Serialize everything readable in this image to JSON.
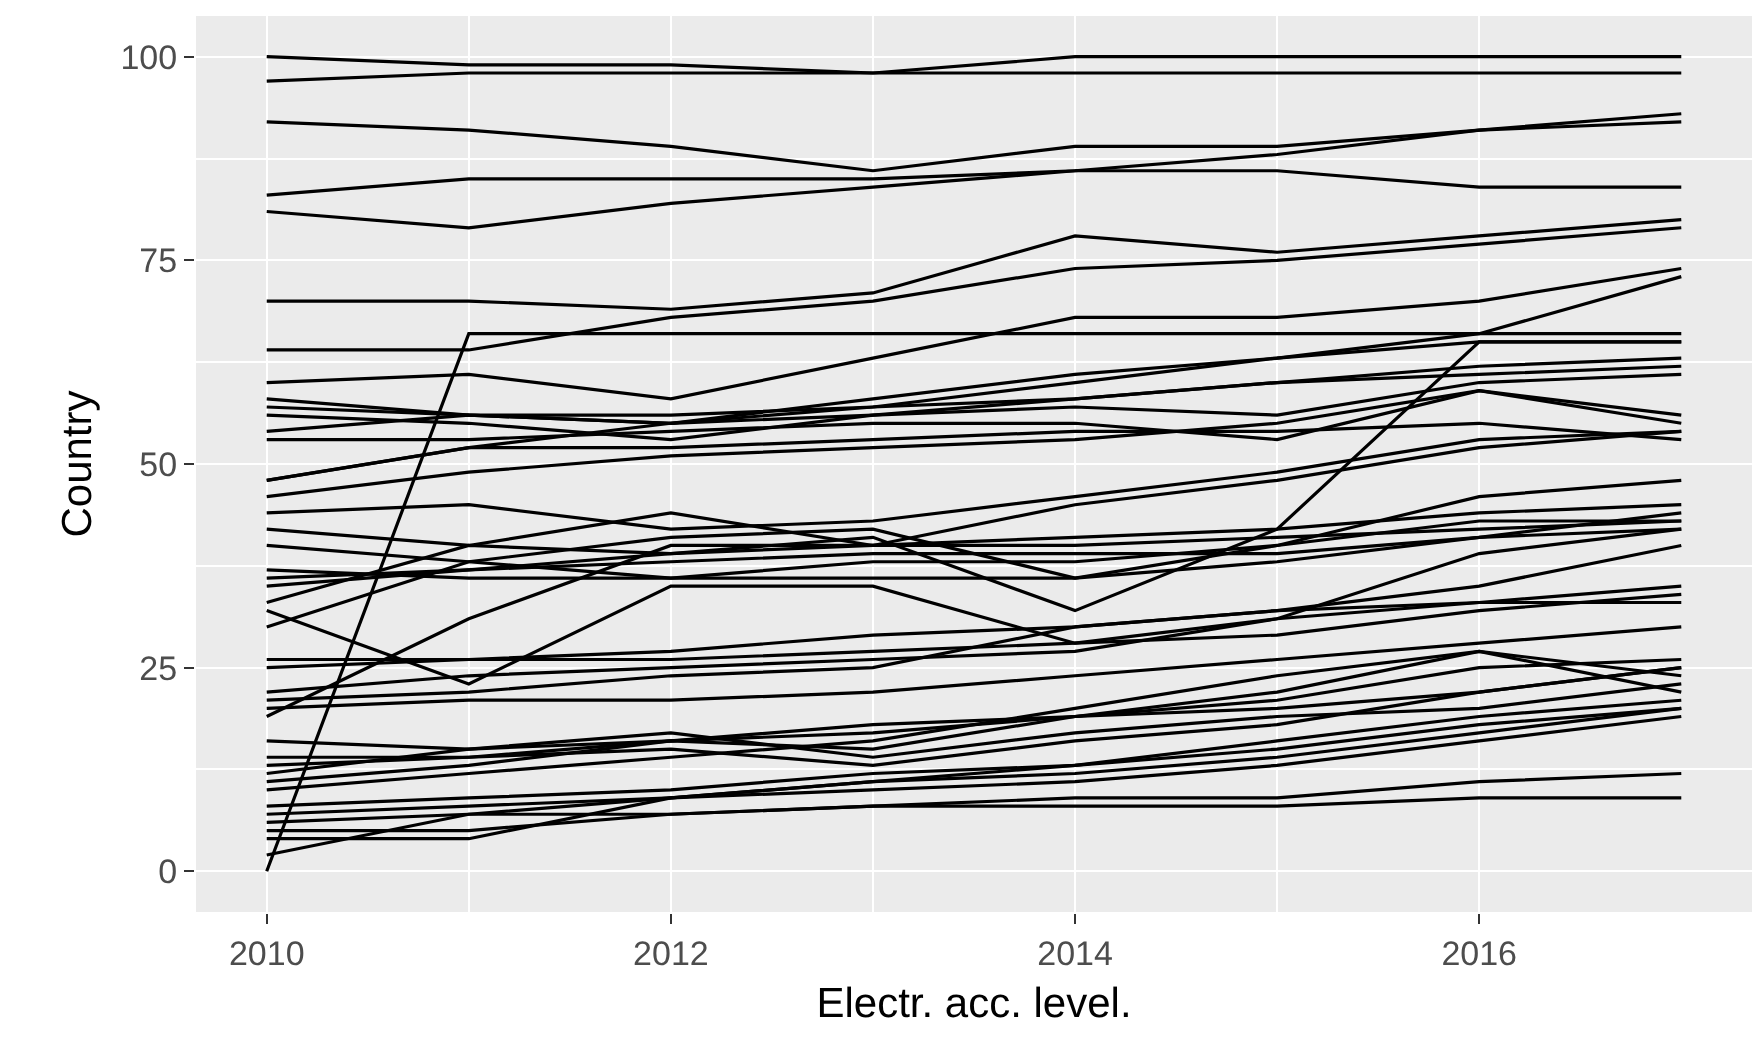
{
  "chart_data": {
    "type": "line",
    "xlabel": "Electr. acc. level.",
    "ylabel": "Country",
    "x": [
      2010,
      2011,
      2012,
      2013,
      2014,
      2015,
      2016,
      2017
    ],
    "xlim": [
      2009.65,
      2017.35
    ],
    "xticks": [
      2010,
      2012,
      2014,
      2016
    ],
    "ylim": [
      -5,
      105
    ],
    "yticks": [
      0,
      25,
      50,
      75,
      100
    ],
    "grid": true,
    "legend": false,
    "marker": "none",
    "line_style": "solid",
    "series": [
      {
        "color": "#000000",
        "values": [
          100,
          99,
          99,
          98,
          100,
          100,
          100,
          100
        ]
      },
      {
        "color": "#000000",
        "values": [
          97,
          98,
          98,
          98,
          98,
          98,
          98,
          98
        ]
      },
      {
        "color": "#000000",
        "values": [
          92,
          91,
          89,
          86,
          89,
          89,
          91,
          93
        ]
      },
      {
        "color": "#000000",
        "values": [
          83,
          85,
          85,
          85,
          86,
          88,
          91,
          92
        ]
      },
      {
        "color": "#000000",
        "values": [
          81,
          79,
          82,
          84,
          86,
          86,
          84,
          84
        ]
      },
      {
        "color": "#000000",
        "values": [
          70,
          70,
          69,
          71,
          78,
          76,
          78,
          80
        ]
      },
      {
        "color": "#000000",
        "values": [
          64,
          64,
          68,
          70,
          74,
          75,
          77,
          79
        ]
      },
      {
        "color": "#000000",
        "values": [
          0,
          66,
          66,
          66,
          66,
          66,
          66,
          66
        ]
      },
      {
        "color": "#000000",
        "values": [
          60,
          61,
          58,
          63,
          68,
          68,
          70,
          74
        ]
      },
      {
        "color": "#000000",
        "values": [
          58,
          56,
          55,
          58,
          61,
          63,
          66,
          73
        ]
      },
      {
        "color": "#000000",
        "values": [
          57,
          56,
          56,
          57,
          60,
          63,
          65,
          65
        ]
      },
      {
        "color": "#000000",
        "values": [
          56,
          55,
          53,
          56,
          58,
          60,
          62,
          63
        ]
      },
      {
        "color": "#000000",
        "values": [
          54,
          56,
          55,
          56,
          57,
          56,
          60,
          61
        ]
      },
      {
        "color": "#000000",
        "values": [
          53,
          53,
          54,
          55,
          55,
          53,
          59,
          55
        ]
      },
      {
        "color": "#000000",
        "values": [
          48,
          52,
          55,
          57,
          58,
          60,
          61,
          62
        ]
      },
      {
        "color": "#000000",
        "values": [
          46,
          49,
          51,
          52,
          53,
          55,
          59,
          56
        ]
      },
      {
        "color": "#000000",
        "values": [
          48,
          52,
          52,
          53,
          54,
          54,
          55,
          53
        ]
      },
      {
        "color": "#000000",
        "values": [
          44,
          45,
          42,
          43,
          46,
          49,
          53,
          54
        ]
      },
      {
        "color": "#000000",
        "values": [
          42,
          40,
          44,
          40,
          41,
          42,
          44,
          45
        ]
      },
      {
        "color": "#000000",
        "values": [
          40,
          38,
          36,
          38,
          38,
          40,
          46,
          48
        ]
      },
      {
        "color": "#000000",
        "values": [
          37,
          36,
          36,
          36,
          36,
          38,
          41,
          42
        ]
      },
      {
        "color": "#000000",
        "values": [
          36,
          37,
          38,
          39,
          39,
          39,
          41,
          44
        ]
      },
      {
        "color": "#000000",
        "values": [
          35,
          37,
          39,
          40,
          40,
          41,
          42,
          43
        ]
      },
      {
        "color": "#000000",
        "values": [
          33,
          40,
          39,
          41,
          32,
          42,
          65,
          65
        ]
      },
      {
        "color": "#000000",
        "values": [
          32,
          23,
          35,
          35,
          28,
          31,
          39,
          42
        ]
      },
      {
        "color": "#000000",
        "values": [
          30,
          38,
          41,
          42,
          36,
          40,
          43,
          43
        ]
      },
      {
        "color": "#000000",
        "values": [
          19,
          31,
          40,
          40,
          45,
          48,
          52,
          54
        ]
      },
      {
        "color": "#000000",
        "values": [
          26,
          26,
          26,
          27,
          28,
          29,
          32,
          34
        ]
      },
      {
        "color": "#000000",
        "values": [
          25,
          26,
          27,
          29,
          30,
          32,
          35,
          40
        ]
      },
      {
        "color": "#000000",
        "values": [
          22,
          24,
          25,
          26,
          27,
          31,
          33,
          35
        ]
      },
      {
        "color": "#000000",
        "values": [
          21,
          22,
          24,
          25,
          30,
          32,
          33,
          33
        ]
      },
      {
        "color": "#000000",
        "values": [
          20,
          21,
          21,
          22,
          24,
          26,
          28,
          30
        ]
      },
      {
        "color": "#000000",
        "values": [
          16,
          15,
          16,
          17,
          19,
          21,
          25,
          26
        ]
      },
      {
        "color": "#000000",
        "values": [
          14,
          14,
          16,
          18,
          19,
          20,
          22,
          25
        ]
      },
      {
        "color": "#000000",
        "values": [
          13,
          14,
          15,
          13,
          16,
          18,
          22,
          25
        ]
      },
      {
        "color": "#000000",
        "values": [
          12,
          15,
          17,
          14,
          17,
          19,
          20,
          23
        ]
      },
      {
        "color": "#000000",
        "values": [
          11,
          13,
          16,
          15,
          19,
          22,
          27,
          24
        ]
      },
      {
        "color": "#000000",
        "values": [
          10,
          12,
          14,
          16,
          20,
          24,
          27,
          22
        ]
      },
      {
        "color": "#000000",
        "values": [
          8,
          9,
          10,
          12,
          13,
          16,
          19,
          21
        ]
      },
      {
        "color": "#000000",
        "values": [
          7,
          8,
          9,
          10,
          11,
          13,
          16,
          19
        ]
      },
      {
        "color": "#000000",
        "values": [
          6,
          7,
          7,
          8,
          9,
          9,
          11,
          12
        ]
      },
      {
        "color": "#000000",
        "values": [
          5,
          5,
          7,
          8,
          8,
          8,
          9,
          9
        ]
      },
      {
        "color": "#000000",
        "values": [
          4,
          4,
          9,
          11,
          12,
          14,
          17,
          20
        ]
      },
      {
        "color": "#000000",
        "values": [
          2,
          7,
          9,
          11,
          13,
          15,
          18,
          20
        ]
      }
    ]
  }
}
